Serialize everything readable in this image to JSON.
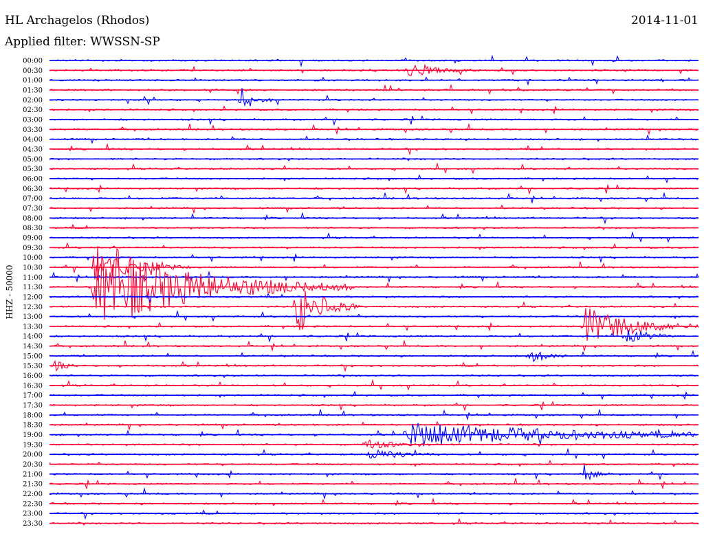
{
  "header": {
    "station": "HL Archagelos (Rhodos)",
    "date": "2014-11-01",
    "filter_label": "Applied filter:",
    "filter_value": "WWSSN-SP"
  },
  "chart_data": {
    "type": "line",
    "title": "HL Archagelos (Rhodos)",
    "subtitle": "Applied filter: WWSSN-SP",
    "ylabel": "HHZ - 50000",
    "xlabel": "",
    "row_labels": [
      "00:00",
      "00:30",
      "01:00",
      "01:30",
      "02:00",
      "02:30",
      "03:00",
      "03:30",
      "04:00",
      "04:30",
      "05:00",
      "05:30",
      "06:00",
      "06:30",
      "07:00",
      "07:30",
      "08:00",
      "08:30",
      "09:00",
      "09:30",
      "10:00",
      "10:30",
      "11:00",
      "11:30",
      "12:00",
      "12:30",
      "13:00",
      "13:30",
      "14:00",
      "14:30",
      "15:00",
      "15:30",
      "16:00",
      "16:30",
      "17:00",
      "17:30",
      "18:00",
      "18:30",
      "19:00",
      "19:30",
      "20:00",
      "20:30",
      "21:00",
      "21:30",
      "22:00",
      "22:30",
      "23:00",
      "23:30"
    ],
    "row_minutes": 30,
    "series_colors": [
      "#0000ff",
      "#ff0033"
    ],
    "grid": false,
    "events": [
      {
        "row": 1,
        "minute": 16.5,
        "amp": 10,
        "dur": 1.2
      },
      {
        "row": 4,
        "minute": 8.8,
        "amp": 12,
        "dur": 0.6
      },
      {
        "row": 21,
        "minute": 2.0,
        "amp": 26,
        "dur": 1.5
      },
      {
        "row": 23,
        "minute": 2.1,
        "amp": 70,
        "dur": 4.0
      },
      {
        "row": 25,
        "minute": 11.4,
        "amp": 45,
        "dur": 1.0
      },
      {
        "row": 27,
        "minute": 24.7,
        "amp": 30,
        "dur": 2.0
      },
      {
        "row": 28,
        "minute": 26.6,
        "amp": 16,
        "dur": 0.8
      },
      {
        "row": 38,
        "minute": 16.5,
        "amp": 18,
        "dur": 7.0
      },
      {
        "row": 39,
        "minute": 14.6,
        "amp": 8,
        "dur": 1.0
      },
      {
        "row": 40,
        "minute": 14.8,
        "amp": 9,
        "dur": 1.2
      },
      {
        "row": 42,
        "minute": 24.7,
        "amp": 14,
        "dur": 0.4
      },
      {
        "row": 30,
        "minute": 22.2,
        "amp": 12,
        "dur": 0.6
      },
      {
        "row": 31,
        "minute": 0.2,
        "amp": 10,
        "dur": 0.4
      }
    ]
  }
}
